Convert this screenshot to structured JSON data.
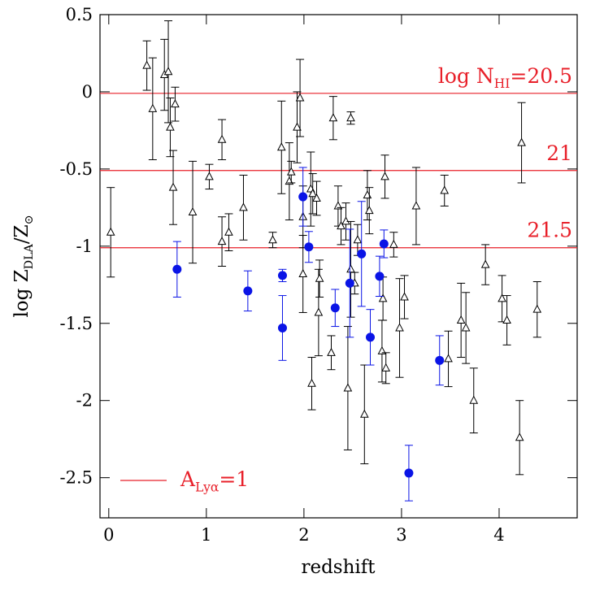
{
  "chart_data": {
    "type": "scatter",
    "xlabel": "redshift",
    "ylabel": [
      "log Z",
      "DLA",
      "/Z",
      "⊙"
    ],
    "xlim": [
      -0.09,
      4.8
    ],
    "ylim": [
      -2.76,
      0.5
    ],
    "xticks": [
      0,
      1,
      2,
      3,
      4
    ],
    "yticks": [
      0.5,
      0,
      -0.5,
      -1,
      -1.5,
      -2,
      -2.5
    ],
    "hlines": [
      {
        "value": -0.01,
        "color": "#e8202a",
        "label": [
          "log  N",
          "HI",
          "=20.5"
        ]
      },
      {
        "value": -0.51,
        "color": "#e8202a",
        "label": [
          "21"
        ]
      },
      {
        "value": -1.01,
        "color": "#e8202a",
        "label": [
          "21.5"
        ]
      }
    ],
    "legend": {
      "color": "#e8202a",
      "label": [
        "A",
        "Lyα",
        "=1"
      ]
    },
    "series": [
      {
        "marker": "triangle",
        "color": "#000000",
        "x": [
          0.02,
          0.39,
          0.45,
          0.57,
          0.61,
          0.63,
          0.68,
          0.66,
          0.86,
          1.03,
          1.16,
          1.16,
          1.23,
          1.38,
          1.68,
          1.77,
          1.85,
          1.87,
          1.93,
          1.96,
          1.99,
          1.99,
          2.07,
          2.08,
          2.09,
          2.13,
          2.15,
          2.16,
          2.28,
          2.3,
          2.35,
          2.38,
          2.43,
          2.45,
          2.48,
          2.48,
          2.52,
          2.55,
          2.62,
          2.65,
          2.67,
          2.8,
          2.81,
          2.83,
          2.84,
          2.92,
          2.98,
          3.03,
          3.15,
          3.48,
          3.44,
          3.61,
          3.66,
          3.74,
          3.86,
          4.03,
          4.08,
          4.23,
          4.21,
          4.39
        ],
        "values": [
          -0.91,
          0.17,
          -0.11,
          0.11,
          0.13,
          -0.23,
          -0.08,
          -0.62,
          -0.78,
          -0.55,
          -0.31,
          -0.97,
          -0.91,
          -0.75,
          -0.96,
          -0.36,
          -0.58,
          -0.52,
          -0.23,
          -0.04,
          -0.81,
          -1.18,
          -0.63,
          -1.89,
          -0.66,
          -0.69,
          -1.43,
          -1.21,
          -1.69,
          -0.17,
          -0.74,
          -0.87,
          -0.84,
          -1.92,
          -0.17,
          -1.15,
          -1.24,
          -0.96,
          -2.09,
          -0.67,
          -0.77,
          -1.68,
          -1.34,
          -0.55,
          -1.79,
          -0.99,
          -1.53,
          -1.33,
          -0.74,
          -1.73,
          -0.64,
          -1.48,
          -1.53,
          -2.0,
          -1.12,
          -1.34,
          -1.48,
          -0.33,
          -2.24,
          -1.41
        ],
        "errors": [
          0.29,
          0.16,
          0.33,
          0.23,
          0.33,
          0.19,
          0.11,
          0.24,
          0.33,
          0.08,
          0.13,
          0.16,
          0.12,
          0.21,
          0.05,
          0.3,
          0.25,
          0.07,
          0.23,
          0.25,
          0.2,
          0.25,
          0.24,
          0.17,
          0.13,
          0.11,
          0.28,
          0.12,
          0.11,
          0.14,
          0.13,
          0.12,
          0.12,
          0.4,
          0.04,
          0.31,
          0.07,
          0.1,
          0.32,
          0.16,
          0.15,
          0.2,
          0.14,
          0.14,
          0.1,
          0.08,
          0.32,
          0.14,
          0.25,
          0.18,
          0.1,
          0.24,
          0.23,
          0.21,
          0.13,
          0.15,
          0.16,
          0.26,
          0.24,
          0.18
        ]
      },
      {
        "marker": "circle",
        "color": "#0a14e6",
        "x": [
          0.7,
          1.425,
          1.78,
          1.78,
          1.99,
          2.05,
          2.32,
          2.47,
          2.59,
          2.68,
          2.775,
          2.82,
          3.075,
          3.39
        ],
        "values": [
          -1.15,
          -1.29,
          -1.19,
          -1.53,
          -0.68,
          -1.005,
          -1.4,
          -1.24,
          -1.05,
          -1.59,
          -1.195,
          -0.985,
          -2.47,
          -1.74
        ],
        "errors": [
          0.18,
          0.13,
          0.04,
          0.21,
          0.19,
          0.1,
          0.12,
          0.35,
          0.34,
          0.18,
          0.13,
          0.09,
          0.18,
          0.16
        ]
      }
    ]
  }
}
